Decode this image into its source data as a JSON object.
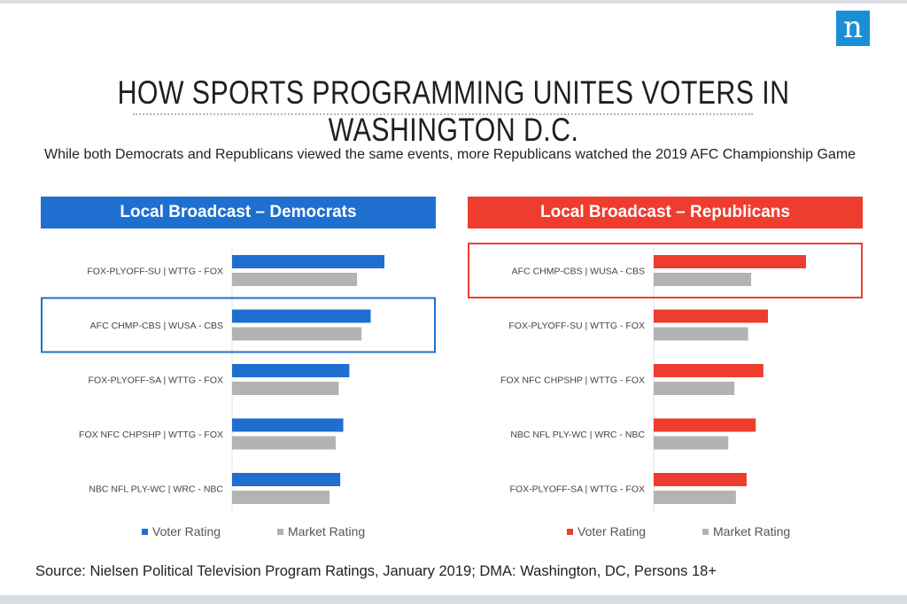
{
  "logo_letter": "n",
  "title": "HOW SPORTS PROGRAMMING UNITES VOTERS IN WASHINGTON D.C.",
  "subtitle": "While both Democrats and Republicans viewed the same events, more Republicans watched the 2019 AFC Championship Game",
  "source": "Source: Nielsen Political Television Program Ratings, January 2019; DMA: Washington, DC, Persons 18+",
  "colors": {
    "democrat": "#1f6fd1",
    "republican": "#ee3d2f",
    "market": "#b3b3b3"
  },
  "chart_data": [
    {
      "type": "bar",
      "orientation": "horizontal",
      "title": "Local Broadcast – Democrats",
      "categories": [
        "FOX-PLYOFF-SU | WTTG - FOX",
        "AFC CHMP-CBS | WUSA - CBS",
        "FOX-PLYOFF-SA | WTTG - FOX",
        "FOX NFC CHPSHP | WTTG - FOX",
        "NBC NFL PLY-WC | WRC - NBC"
      ],
      "series": [
        {
          "name": "Voter Rating",
          "values": [
            10.0,
            9.1,
            7.7,
            7.3,
            7.1
          ]
        },
        {
          "name": "Market Rating",
          "values": [
            8.2,
            8.5,
            7.0,
            6.8,
            6.4
          ]
        }
      ],
      "highlighted_category": "AFC CHMP-CBS | WUSA - CBS",
      "xlim": [
        0,
        10
      ],
      "legend": "bottom"
    },
    {
      "type": "bar",
      "orientation": "horizontal",
      "title": "Local Broadcast – Republicans",
      "categories": [
        "AFC CHMP-CBS | WUSA - CBS",
        "FOX-PLYOFF-SU | WTTG - FOX",
        "FOX NFC CHPSHP | WTTG - FOX",
        "NBC NFL PLY-WC | WRC - NBC",
        "FOX-PLYOFF-SA | WTTG - FOX"
      ],
      "series": [
        {
          "name": "Voter Rating",
          "values": [
            10.0,
            7.5,
            7.2,
            6.7,
            6.1
          ]
        },
        {
          "name": "Market Rating",
          "values": [
            6.4,
            6.2,
            5.3,
            4.9,
            5.4
          ]
        }
      ],
      "highlighted_category": "AFC CHMP-CBS | WUSA - CBS",
      "xlim": [
        0,
        10
      ],
      "legend": "bottom"
    }
  ]
}
